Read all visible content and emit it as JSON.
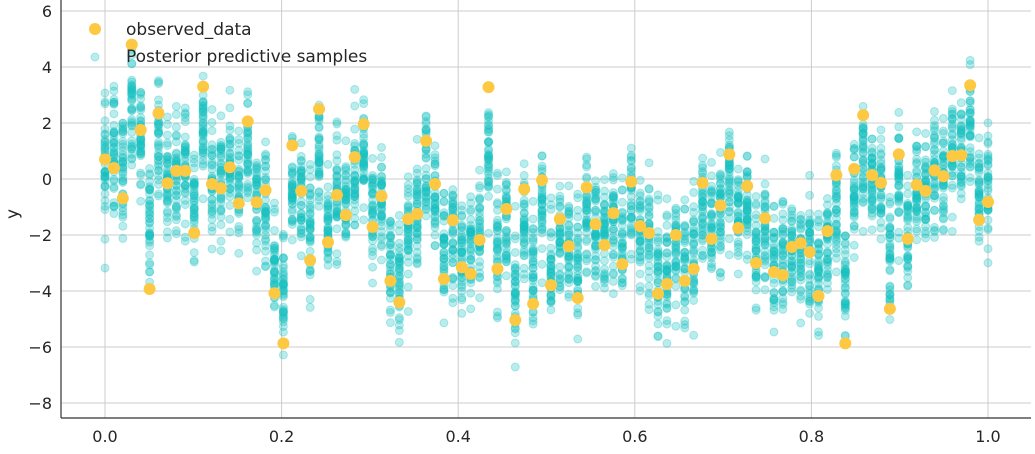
{
  "chart_data": {
    "type": "scatter",
    "title": "",
    "xlabel": "",
    "ylabel": "y",
    "xlim": [
      -0.05,
      1.05
    ],
    "ylim": [
      -8.5,
      6.2
    ],
    "xticks": [
      0.0,
      0.2,
      0.4,
      0.6,
      0.8,
      1.0
    ],
    "xtick_labels": [
      "0.0",
      "0.2",
      "0.4",
      "0.6",
      "0.8",
      "1.0"
    ],
    "yticks": [
      6,
      4,
      2,
      0,
      -2,
      -4,
      -6,
      -8
    ],
    "ytick_labels": [
      "6",
      "4",
      "2",
      "0",
      "−2",
      "−4",
      "−6",
      "−8"
    ],
    "grid": true,
    "legend_position": "top-left",
    "series": [
      {
        "name": "observed_data",
        "color": "#fdc943",
        "x_start": 0.0,
        "x_end": 1.0,
        "values": [
          0.7,
          0.39,
          -0.69,
          4.8,
          1.75,
          -3.93,
          2.35,
          -0.15,
          0.29,
          0.29,
          -1.93,
          3.3,
          -0.18,
          -0.33,
          0.42,
          -0.87,
          2.06,
          -0.83,
          -0.4,
          -4.08,
          -5.87,
          1.2,
          -0.43,
          -2.9,
          2.5,
          -2.26,
          -0.57,
          -1.29,
          0.78,
          1.96,
          -1.71,
          -0.61,
          -3.64,
          -4.4,
          -1.43,
          -1.25,
          1.36,
          -0.18,
          -3.57,
          -1.47,
          -3.15,
          -3.39,
          -2.18,
          3.28,
          -3.21,
          -1.07,
          -5.04,
          -0.36,
          -4.46,
          -0.04,
          -3.79,
          -1.43,
          -2.4,
          -4.25,
          -0.3,
          -1.61,
          -2.36,
          -1.22,
          -3.04,
          -0.1,
          -1.68,
          -1.93,
          -4.1,
          -3.75,
          -2.0,
          -3.64,
          -3.21,
          -0.14,
          -2.14,
          -0.94,
          0.88,
          -1.75,
          -0.25,
          -3.0,
          -1.4,
          -3.32,
          -3.43,
          -2.43,
          -2.29,
          -2.61,
          -4.18,
          -1.86,
          0.14,
          -5.87,
          0.36,
          2.28,
          0.14,
          -0.14,
          -4.64,
          0.88,
          -2.14,
          -0.21,
          -0.43,
          0.31,
          0.1,
          0.82,
          0.85,
          3.35,
          -1.46,
          -0.82
        ]
      },
      {
        "name": "Posterior predictive samples",
        "color": "#17c1c1",
        "alpha": 0.3
      }
    ]
  }
}
